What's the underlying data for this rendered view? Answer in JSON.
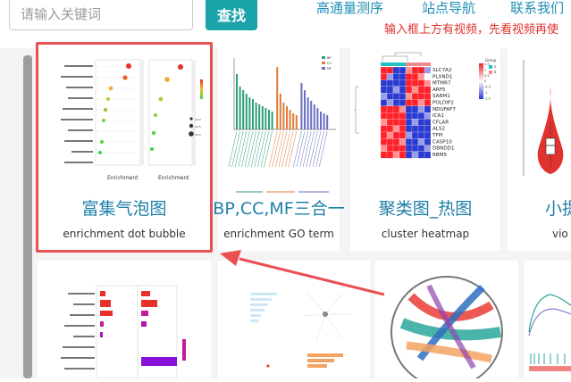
{
  "search": {
    "placeholder": "请输入关键词",
    "button": "查找"
  },
  "nav": [
    "高通量测序",
    "站点导航",
    "联系我们"
  ],
  "notice": "输入框上方有视频，先看视频再使",
  "cards": [
    {
      "title": "富集气泡图",
      "subtitle": "enrichment dot bubble"
    },
    {
      "title": "BP,CC,MF三合一",
      "subtitle": "enrichment GO term"
    },
    {
      "title": "聚类图_热图",
      "subtitle": "cluster heatmap"
    },
    {
      "title": "小提",
      "subtitle": "vio"
    }
  ],
  "bubble": {
    "xlabel": "Enrichment",
    "size_legend": [
      "10.0",
      "12.5",
      "15.0"
    ],
    "legend_title": "-log10(pvalue)"
  },
  "heatmap": {
    "genes": [
      "SLC7A2",
      "PLXND1",
      "MTMR7",
      "ARF5",
      "SARM1",
      "POLDIP2",
      "NDUFAF7",
      "ICA1",
      "CFLAR",
      "ALS2",
      "TFPI",
      "CASP10",
      "DBNDD1",
      "RBM5"
    ],
    "group_legend_title": "Group",
    "group_values": [
      "A",
      "B"
    ],
    "scale_ticks": [
      "1.5",
      "1",
      "0.5",
      "0",
      "-0.5",
      "-1",
      "-1.5"
    ]
  },
  "go_term": {
    "legend": [
      "BP",
      "CC",
      "MF"
    ]
  },
  "colors": {
    "accent": "#1aa3a8",
    "link": "#1f8fb5",
    "title": "#1f7fa8",
    "notice": "#e0302a",
    "highlight": "#ea5052",
    "heat_high": "#e8222b",
    "heat_low": "#2b3bd1",
    "bp": "#2e9e78",
    "cc": "#e07b35",
    "mf": "#6a6fc4"
  }
}
